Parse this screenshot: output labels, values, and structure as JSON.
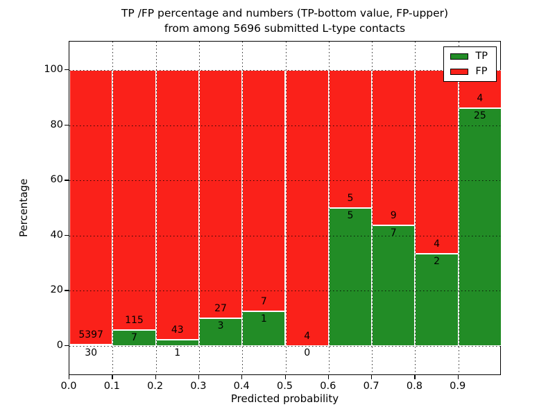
{
  "title": {
    "line1": "TP /FP percentage and numbers (TP-bottom value, FP-upper)",
    "line2": "from among 5696 submitted L-type contacts"
  },
  "chart_data": {
    "type": "bar",
    "stacked": true,
    "normalized_to_percent": true,
    "title": "TP /FP percentage and numbers (TP-bottom value, FP-upper) from among 5696 submitted L-type contacts",
    "xlabel": "Predicted probability",
    "ylabel": "Percentage",
    "xlim": [
      0.0,
      1.0
    ],
    "ylim": [
      -10.8,
      110.3
    ],
    "bin_width": 0.1,
    "bin_edges": [
      0.0,
      0.1,
      0.2,
      0.3,
      0.4,
      0.5,
      0.6,
      0.7,
      0.8,
      0.9,
      1.0
    ],
    "xtick_labels": [
      "0.0",
      "0.1",
      "0.2",
      "0.3",
      "0.4",
      "0.5",
      "0.6",
      "0.7",
      "0.8",
      "0.9"
    ],
    "ytick_values": [
      0,
      20,
      40,
      60,
      80,
      100
    ],
    "series": [
      {
        "name": "TP",
        "color": "#228c26",
        "counts": [
          30,
          7,
          1,
          3,
          1,
          0,
          5,
          7,
          2,
          25
        ]
      },
      {
        "name": "FP",
        "color": "#fa211a",
        "counts": [
          5397,
          115,
          43,
          27,
          7,
          4,
          5,
          9,
          4,
          4
        ]
      }
    ],
    "tp_percentages": [
      0.55,
      5.74,
      2.27,
      10.0,
      12.5,
      0.0,
      50.0,
      43.75,
      33.33,
      86.21
    ],
    "total_contacts": 5696,
    "legend_position": "upper right",
    "grid": "dotted",
    "bar_edge_color": "#ffffff"
  }
}
